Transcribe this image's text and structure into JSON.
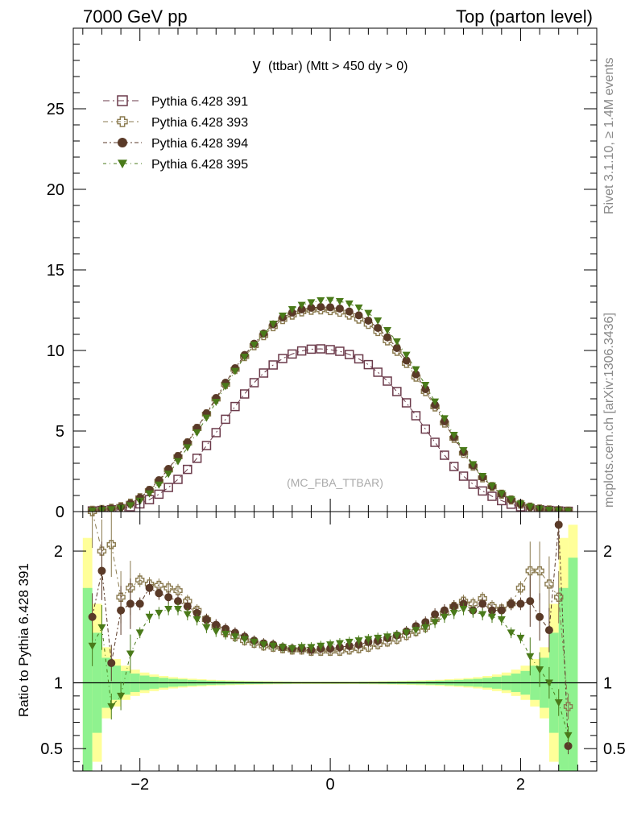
{
  "header": {
    "left": "7000 GeV pp",
    "right": "Top (parton level)"
  },
  "side_labels": {
    "rivet": "Rivet 3.1.10, ≥ 1.4M events",
    "mcplots": "mcplots.cern.ch [arXiv:1306.3436]"
  },
  "chart_data": [
    {
      "type": "scatter",
      "title": "y (ttbar) (Mtt > 450 dy > 0)",
      "title_main": "y",
      "title_rest": "(ttbar) (Mtt > 450 dy > 0)",
      "watermark": "(MC_FBA_TTBAR)",
      "xlim": [
        -2.7,
        2.8
      ],
      "ylim": [
        0,
        30
      ],
      "yticks": [
        0,
        5,
        10,
        15,
        20,
        25
      ],
      "legend_position": "top-left",
      "series": [
        {
          "name": "Pythia 6.428 391",
          "marker": "open-square",
          "color": "#6b3a4a",
          "x": [
            -2.5,
            -2.4,
            -2.3,
            -2.2,
            -2.1,
            -2.0,
            -1.9,
            -1.8,
            -1.7,
            -1.6,
            -1.5,
            -1.4,
            -1.3,
            -1.2,
            -1.1,
            -1.0,
            -0.9,
            -0.8,
            -0.7,
            -0.6,
            -0.5,
            -0.4,
            -0.3,
            -0.2,
            -0.1,
            0.0,
            0.1,
            0.2,
            0.3,
            0.4,
            0.5,
            0.6,
            0.7,
            0.8,
            0.9,
            1.0,
            1.1,
            1.2,
            1.3,
            1.4,
            1.5,
            1.6,
            1.7,
            1.8,
            1.9,
            2.0,
            2.1,
            2.2,
            2.3,
            2.4,
            2.5
          ],
          "y": [
            0.04,
            0.07,
            0.11,
            0.18,
            0.3,
            0.48,
            0.74,
            1.08,
            1.5,
            2.0,
            2.62,
            3.31,
            4.1,
            4.9,
            5.73,
            6.52,
            7.3,
            8.0,
            8.6,
            9.1,
            9.5,
            9.78,
            9.97,
            10.08,
            10.1,
            10.05,
            9.95,
            9.75,
            9.48,
            9.12,
            8.65,
            8.1,
            7.45,
            6.75,
            5.95,
            5.12,
            4.3,
            3.5,
            2.8,
            2.2,
            1.7,
            1.28,
            0.95,
            0.68,
            0.46,
            0.3,
            0.18,
            0.11,
            0.07,
            0.04,
            0.02
          ]
        },
        {
          "name": "Pythia 6.428 393",
          "marker": "open-cross",
          "color": "#8a7a4f",
          "x": [
            -2.5,
            -2.4,
            -2.3,
            -2.2,
            -2.1,
            -2.0,
            -1.9,
            -1.8,
            -1.7,
            -1.6,
            -1.5,
            -1.4,
            -1.3,
            -1.2,
            -1.1,
            -1.0,
            -0.9,
            -0.8,
            -0.7,
            -0.6,
            -0.5,
            -0.4,
            -0.3,
            -0.2,
            -0.1,
            0.0,
            0.1,
            0.2,
            0.3,
            0.4,
            0.5,
            0.6,
            0.7,
            0.8,
            0.9,
            1.0,
            1.1,
            1.2,
            1.3,
            1.4,
            1.5,
            1.6,
            1.7,
            1.8,
            1.9,
            2.0,
            2.1,
            2.2,
            2.3,
            2.4,
            2.5
          ],
          "y": [
            0.08,
            0.13,
            0.2,
            0.3,
            0.52,
            0.86,
            1.3,
            1.88,
            2.58,
            3.4,
            4.25,
            5.15,
            6.05,
            6.98,
            7.9,
            8.82,
            9.62,
            10.3,
            10.92,
            11.48,
            11.92,
            12.2,
            12.4,
            12.5,
            12.52,
            12.48,
            12.38,
            12.2,
            11.95,
            11.62,
            11.18,
            10.6,
            9.95,
            9.2,
            8.35,
            7.45,
            6.5,
            5.5,
            4.55,
            3.62,
            2.82,
            2.1,
            1.55,
            1.08,
            0.72,
            0.46,
            0.28,
            0.16,
            0.1,
            0.06,
            0.03
          ]
        },
        {
          "name": "Pythia 6.428 394",
          "marker": "filled-circle",
          "color": "#5a3a28",
          "x": [
            -2.5,
            -2.4,
            -2.3,
            -2.2,
            -2.1,
            -2.0,
            -1.9,
            -1.8,
            -1.7,
            -1.6,
            -1.5,
            -1.4,
            -1.3,
            -1.2,
            -1.1,
            -1.0,
            -0.9,
            -0.8,
            -0.7,
            -0.6,
            -0.5,
            -0.4,
            -0.3,
            -0.2,
            -0.1,
            0.0,
            0.1,
            0.2,
            0.3,
            0.4,
            0.5,
            0.6,
            0.7,
            0.8,
            0.9,
            1.0,
            1.1,
            1.2,
            1.3,
            1.4,
            1.5,
            1.6,
            1.7,
            1.8,
            1.9,
            2.0,
            2.1,
            2.2,
            2.3,
            2.4,
            2.5
          ],
          "y": [
            0.06,
            0.12,
            0.19,
            0.29,
            0.5,
            0.85,
            1.35,
            1.95,
            2.65,
            3.45,
            4.3,
            5.2,
            6.1,
            7.05,
            8.0,
            8.9,
            9.72,
            10.42,
            11.05,
            11.62,
            12.05,
            12.35,
            12.55,
            12.65,
            12.7,
            12.68,
            12.6,
            12.42,
            12.18,
            11.85,
            11.4,
            10.82,
            10.15,
            9.38,
            8.52,
            7.6,
            6.62,
            5.6,
            4.62,
            3.7,
            2.86,
            2.14,
            1.57,
            1.1,
            0.74,
            0.47,
            0.29,
            0.17,
            0.1,
            0.07,
            0.04
          ]
        },
        {
          "name": "Pythia 6.428 395",
          "marker": "filled-triangle-down",
          "color": "#4a7a1a",
          "x": [
            -2.5,
            -2.4,
            -2.3,
            -2.2,
            -2.1,
            -2.0,
            -1.9,
            -1.8,
            -1.7,
            -1.6,
            -1.5,
            -1.4,
            -1.3,
            -1.2,
            -1.1,
            -1.0,
            -0.9,
            -0.8,
            -0.7,
            -0.6,
            -0.5,
            -0.4,
            -0.3,
            -0.2,
            -0.1,
            0.0,
            0.1,
            0.2,
            0.3,
            0.4,
            0.5,
            0.6,
            0.7,
            0.8,
            0.9,
            1.0,
            1.1,
            1.2,
            1.3,
            1.4,
            1.5,
            1.6,
            1.7,
            1.8,
            1.9,
            2.0,
            2.1,
            2.2,
            2.3,
            2.4,
            2.5
          ],
          "y": [
            0.05,
            0.09,
            0.13,
            0.22,
            0.38,
            0.66,
            1.12,
            1.66,
            2.34,
            3.12,
            3.98,
            4.9,
            5.82,
            6.8,
            7.78,
            8.72,
            9.6,
            10.35,
            11.02,
            11.65,
            12.15,
            12.55,
            12.82,
            12.98,
            13.1,
            13.12,
            13.05,
            12.9,
            12.65,
            12.32,
            11.85,
            11.25,
            10.55,
            9.72,
            8.82,
            7.85,
            6.82,
            5.78,
            4.75,
            3.8,
            2.93,
            2.2,
            1.6,
            1.12,
            0.76,
            0.49,
            0.3,
            0.17,
            0.1,
            0.06,
            0.03
          ]
        }
      ]
    },
    {
      "type": "scatter",
      "ylabel": "Ratio to Pythia 6.428 391",
      "xlim": [
        -2.7,
        2.8
      ],
      "ylim": [
        0.33,
        2.3
      ],
      "xticks": [
        -2,
        0,
        2
      ],
      "yticks": [
        0.5,
        1,
        2
      ],
      "reference_line": 1,
      "band_edges": [
        -2.6,
        -2.5,
        -2.4,
        -2.3,
        -2.2,
        -2.1,
        -2.0,
        -1.9,
        -1.8,
        -1.7,
        -1.6,
        -1.5,
        -1.4,
        -1.3,
        -1.2,
        -1.1,
        -1.0,
        -0.9,
        -0.8,
        -0.7,
        -0.6,
        -0.5,
        -0.4,
        -0.3,
        -0.2,
        -0.1,
        0.0,
        0.1,
        0.2,
        0.3,
        0.4,
        0.5,
        0.6,
        0.7,
        0.8,
        0.9,
        1.0,
        1.1,
        1.2,
        1.3,
        1.4,
        1.5,
        1.6,
        1.7,
        1.8,
        1.9,
        2.0,
        2.1,
        2.2,
        2.3,
        2.4,
        2.5,
        2.6
      ],
      "band_inner": [
        0.72,
        0.38,
        0.19,
        0.13,
        0.09,
        0.07,
        0.055,
        0.045,
        0.037,
        0.03,
        0.026,
        0.022,
        0.019,
        0.016,
        0.014,
        0.012,
        0.011,
        0.01,
        0.009,
        0.008,
        0.007,
        0.007,
        0.006,
        0.006,
        0.006,
        0.006,
        0.006,
        0.006,
        0.006,
        0.007,
        0.007,
        0.008,
        0.009,
        0.01,
        0.011,
        0.012,
        0.014,
        0.016,
        0.019,
        0.022,
        0.026,
        0.03,
        0.037,
        0.045,
        0.055,
        0.07,
        0.09,
        0.13,
        0.19,
        0.38,
        0.72,
        0.95
      ],
      "band_outer": [
        1.1,
        0.6,
        0.27,
        0.18,
        0.13,
        0.1,
        0.078,
        0.063,
        0.052,
        0.043,
        0.036,
        0.031,
        0.027,
        0.023,
        0.02,
        0.018,
        0.016,
        0.014,
        0.013,
        0.012,
        0.011,
        0.01,
        0.009,
        0.009,
        0.009,
        0.009,
        0.009,
        0.009,
        0.009,
        0.01,
        0.011,
        0.012,
        0.013,
        0.014,
        0.016,
        0.018,
        0.02,
        0.023,
        0.027,
        0.031,
        0.036,
        0.043,
        0.052,
        0.063,
        0.078,
        0.1,
        0.13,
        0.18,
        0.27,
        0.6,
        1.1,
        1.2
      ],
      "series": [
        {
          "name": "Pythia 6.428 391",
          "x": [
            -2.5,
            -2.4,
            -2.3,
            -2.2,
            -2.1,
            -2.0,
            -1.9,
            -1.8,
            -1.7,
            -1.6,
            -1.5,
            -1.4,
            -1.3,
            -1.2,
            -1.1,
            -1.0,
            -0.9,
            -0.8,
            -0.7,
            -0.6,
            -0.5,
            -0.4,
            -0.3,
            -0.2,
            -0.1,
            0.0,
            0.1,
            0.2,
            0.3,
            0.4,
            0.5,
            0.6,
            0.7,
            0.8,
            0.9,
            1.0,
            1.1,
            1.2,
            1.3,
            1.4,
            1.5,
            1.6,
            1.7,
            1.8,
            1.9,
            2.0,
            2.1,
            2.2,
            2.3,
            2.4,
            2.5
          ],
          "y": [
            1,
            1,
            1,
            1,
            1,
            1,
            1,
            1,
            1,
            1,
            1,
            1,
            1,
            1,
            1,
            1,
            1,
            1,
            1,
            1,
            1,
            1,
            1,
            1,
            1,
            1,
            1,
            1,
            1,
            1,
            1,
            1,
            1,
            1,
            1,
            1,
            1,
            1,
            1,
            1,
            1,
            1,
            1,
            1,
            1,
            1,
            1,
            1,
            1,
            1,
            1
          ]
        },
        {
          "name": "Pythia 6.428 393",
          "x": [
            -2.5,
            -2.4,
            -2.3,
            -2.2,
            -2.1,
            -2.0,
            -1.9,
            -1.8,
            -1.7,
            -1.6,
            -1.5,
            -1.4,
            -1.3,
            -1.2,
            -1.1,
            -1.0,
            -0.9,
            -0.8,
            -0.7,
            -0.6,
            -0.5,
            -0.4,
            -0.3,
            -0.2,
            -0.1,
            0.0,
            0.1,
            0.2,
            0.3,
            0.4,
            0.5,
            0.6,
            0.7,
            0.8,
            0.9,
            1.0,
            1.1,
            1.2,
            1.3,
            1.4,
            1.5,
            1.6,
            1.7,
            1.8,
            1.9,
            2.0,
            2.1,
            2.2,
            2.3,
            2.4,
            2.5
          ],
          "y": [
            2.3,
            2.0,
            2.05,
            1.65,
            1.72,
            1.78,
            1.75,
            1.74,
            1.72,
            1.7,
            1.62,
            1.55,
            1.48,
            1.43,
            1.38,
            1.35,
            1.32,
            1.3,
            1.28,
            1.27,
            1.26,
            1.25,
            1.25,
            1.24,
            1.24,
            1.24,
            1.24,
            1.25,
            1.26,
            1.27,
            1.29,
            1.31,
            1.33,
            1.36,
            1.39,
            1.42,
            1.48,
            1.53,
            1.58,
            1.62,
            1.6,
            1.64,
            1.58,
            1.56,
            1.6,
            1.72,
            1.85,
            1.85,
            1.75,
            1.65,
            0.82
          ]
        },
        {
          "name": "Pythia 6.428 394",
          "x": [
            -2.5,
            -2.4,
            -2.3,
            -2.2,
            -2.1,
            -2.0,
            -1.9,
            -1.8,
            -1.7,
            -1.6,
            -1.5,
            -1.4,
            -1.3,
            -1.2,
            -1.1,
            -1.0,
            -0.9,
            -0.8,
            -0.7,
            -0.6,
            -0.5,
            -0.4,
            -0.3,
            -0.2,
            -0.1,
            0.0,
            0.1,
            0.2,
            0.3,
            0.4,
            0.5,
            0.6,
            0.7,
            0.8,
            0.9,
            1.0,
            1.1,
            1.2,
            1.3,
            1.4,
            1.5,
            1.6,
            1.7,
            1.8,
            1.9,
            2.0,
            2.1,
            2.2,
            2.3,
            2.4,
            2.5
          ],
          "y": [
            1.5,
            1.85,
            1.15,
            1.55,
            1.6,
            1.6,
            1.72,
            1.68,
            1.65,
            1.62,
            1.58,
            1.53,
            1.48,
            1.44,
            1.41,
            1.38,
            1.35,
            1.32,
            1.3,
            1.29,
            1.27,
            1.26,
            1.26,
            1.25,
            1.26,
            1.26,
            1.27,
            1.28,
            1.29,
            1.31,
            1.32,
            1.34,
            1.36,
            1.39,
            1.43,
            1.46,
            1.52,
            1.55,
            1.58,
            1.6,
            1.55,
            1.6,
            1.55,
            1.55,
            1.6,
            1.6,
            1.62,
            1.5,
            1.4,
            2.2,
            0.52
          ]
        },
        {
          "name": "Pythia 6.428 395",
          "x": [
            -2.5,
            -2.4,
            -2.3,
            -2.2,
            -2.1,
            -2.0,
            -1.9,
            -1.8,
            -1.7,
            -1.6,
            -1.5,
            -1.4,
            -1.3,
            -1.2,
            -1.1,
            -1.0,
            -0.9,
            -0.8,
            -0.7,
            -0.6,
            -0.5,
            -0.4,
            -0.3,
            -0.2,
            -0.1,
            0.0,
            0.1,
            0.2,
            0.3,
            0.4,
            0.5,
            0.6,
            0.7,
            0.8,
            0.9,
            1.0,
            1.1,
            1.2,
            1.3,
            1.4,
            1.5,
            1.6,
            1.7,
            1.8,
            1.9,
            2.0,
            2.1,
            2.2,
            2.3,
            2.4,
            2.5
          ],
          "y": [
            1.28,
            1.42,
            0.82,
            0.9,
            1.22,
            1.38,
            1.5,
            1.53,
            1.56,
            1.56,
            1.52,
            1.48,
            1.42,
            1.39,
            1.37,
            1.35,
            1.33,
            1.31,
            1.29,
            1.28,
            1.27,
            1.26,
            1.27,
            1.27,
            1.28,
            1.29,
            1.3,
            1.31,
            1.32,
            1.33,
            1.34,
            1.35,
            1.36,
            1.38,
            1.4,
            1.42,
            1.46,
            1.5,
            1.53,
            1.56,
            1.54,
            1.52,
            1.5,
            1.48,
            1.38,
            1.34,
            1.2,
            1.1,
            1.0,
            0.85,
            0.6
          ]
        }
      ]
    }
  ]
}
